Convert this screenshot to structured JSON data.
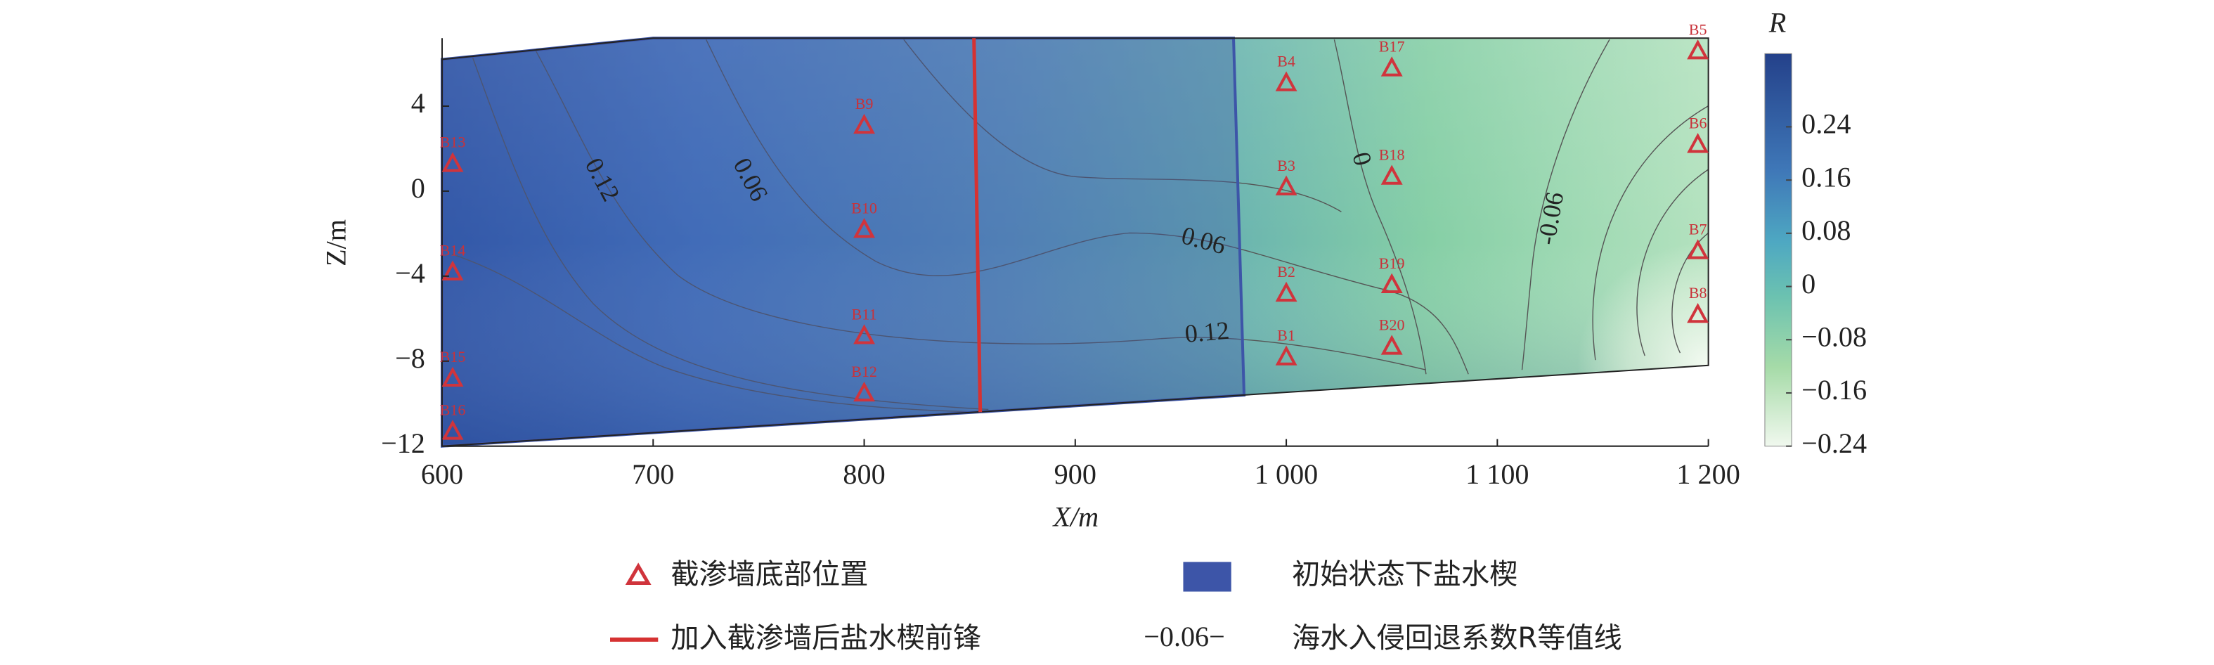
{
  "chart_data": {
    "type": "contour",
    "x_label": "X/m",
    "y_label": "Z/m",
    "xlim": [
      600,
      1200
    ],
    "ylim": [
      -12,
      7.2
    ],
    "xticks": [
      600,
      700,
      800,
      900,
      {
        "value": 1000,
        "label": "1 000"
      },
      {
        "value": 1100,
        "label": "1 100"
      },
      {
        "value": 1200,
        "label": "1 200"
      }
    ],
    "yticks": [
      4,
      0,
      {
        "value": -4,
        "label": "−4"
      },
      {
        "value": -8,
        "label": "−8"
      },
      {
        "value": -12,
        "label": "−12"
      }
    ],
    "points": {
      "name": "截渗墙底部位置",
      "color": "#d0343c",
      "labels": [
        "B1",
        "B2",
        "B3",
        "B4",
        "B5",
        "B6",
        "B7",
        "B8",
        "B9",
        "B10",
        "B11",
        "B12",
        "B13",
        "B14",
        "B15",
        "B16",
        "B17",
        "B18",
        "B19",
        "B20"
      ],
      "x": [
        1000,
        1000,
        1000,
        1000,
        1195,
        1195,
        1195,
        1195,
        800,
        800,
        800,
        800,
        605,
        605,
        605,
        605,
        1050,
        1050,
        1050,
        1050
      ],
      "y": [
        -7.8,
        -4.8,
        0.2,
        5.1,
        6.6,
        2.2,
        -2.8,
        -5.8,
        3.1,
        -1.8,
        -6.8,
        -9.5,
        1.3,
        -3.8,
        -8.8,
        -11.3,
        5.8,
        0.7,
        -4.4,
        -7.3
      ]
    },
    "wedge": {
      "name": "初始状态下盐水楔",
      "color": "#3d55a8"
    },
    "front": {
      "name": "加入截渗墙后盐水楔前锋",
      "color": "#d63232"
    },
    "contours": {
      "name": "海水入侵回退系数R等值线",
      "sample_label": {
        "value": -0.06,
        "label": "−0.06−"
      },
      "labels": [
        0.12,
        0.06,
        0.06,
        0.12,
        0,
        -0.06
      ]
    },
    "colorbar": {
      "label": "R",
      "lim": [
        -0.24,
        0.35
      ],
      "ticks": [
        0.24,
        0.16,
        0.08,
        0,
        {
          "value": -0.08,
          "label": "−0.08"
        },
        {
          "value": -0.16,
          "label": "−0.16"
        },
        {
          "value": -0.24,
          "label": "−0.24"
        }
      ]
    }
  }
}
